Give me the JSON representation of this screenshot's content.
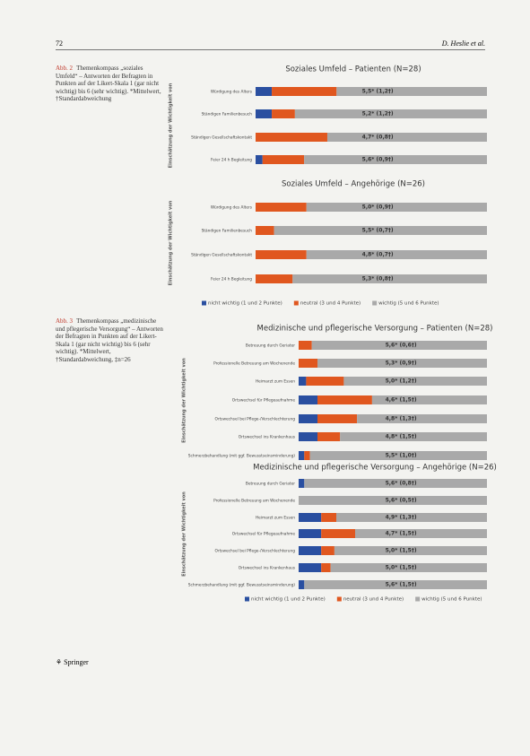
{
  "header": {
    "page": "72",
    "authors": "D. Heslie et al."
  },
  "captions": [
    {
      "label": "Abb. 2",
      "text": "Themenkompass „soziales Umfeld“ – Antworten der Befragten in Punkten auf der Likert-Skala 1 (gar nicht wichtig) bis 6 (sehr wichtig). *Mittelwert, †Standardabweichung"
    },
    {
      "label": "Abb. 3",
      "text": "Themenkompass „medizinische und pflegerische Versorgung“ – Antworten der Befragten in Punkten auf der Likert-Skala 1 (gar nicht wichtig) bis 6 (sehr wichtig). *Mittelwert, †Standardabweichung, ‡n=26"
    }
  ],
  "footer": {
    "publisher": "Springer"
  },
  "chart_data": [
    {
      "type": "stacked-hbar",
      "title": "Soziales Umfeld – Patienten (N=28)",
      "y_label": "Einschätzung der Wichtigkeit von",
      "categories": [
        "Würdigung des Alters",
        "Ständigen Familienbesuch",
        "Ständigen Gesellschaftskontakt",
        "Feier 24 h Begleitung"
      ],
      "annotations": [
        "5,5* (1,2†)",
        "5,2* (1,2†)",
        "4,7* (0,8†)",
        "5,6* (0,9†)"
      ],
      "series": [
        {
          "name": "nicht wichtig (1 und 2 Punkte)",
          "color": "#2a4fa0",
          "values": [
            7,
            7,
            0,
            3
          ]
        },
        {
          "name": "neutral (3 und 4 Punkte)",
          "color": "#e0571f",
          "values": [
            28,
            10,
            31,
            18
          ]
        },
        {
          "name": "wichtig (5 und 6 Punkte)",
          "color": "#a9a9a9",
          "values": [
            65,
            83,
            69,
            79
          ]
        }
      ],
      "xlim": [
        0,
        100
      ],
      "legend": false
    },
    {
      "type": "stacked-hbar",
      "title": "Soziales Umfeld – Angehörige (N=26)",
      "y_label": "Einschätzung der Wichtigkeit von",
      "categories": [
        "Würdigung des Alters",
        "Ständigen Familienbesuch",
        "Ständigen Gesellschaftskontakt",
        "Feier 24 h Begleitung"
      ],
      "annotations": [
        "5,0* (0,9†)",
        "5,5* (0,7†)",
        "4,8* (0,7†)",
        "5,3* (0,8†)"
      ],
      "series": [
        {
          "name": "nicht wichtig (1 und 2 Punkte)",
          "color": "#2a4fa0",
          "values": [
            0,
            0,
            0,
            0
          ]
        },
        {
          "name": "neutral (3 und 4 Punkte)",
          "color": "#e0571f",
          "values": [
            22,
            8,
            22,
            16
          ]
        },
        {
          "name": "wichtig (5 und 6 Punkte)",
          "color": "#a9a9a9",
          "values": [
            78,
            92,
            78,
            84
          ]
        }
      ],
      "xlim": [
        0,
        100
      ],
      "legend": true
    },
    {
      "type": "stacked-hbar",
      "title": "Medizinische und pflegerische Versorgung – Patienten (N=28)",
      "y_label": "Einschätzung der Wichtigkeit von",
      "categories": [
        "Betreuung durch Geriater",
        "Professionelle Betreuung am Wochenende",
        "Heimarzt zum Essen",
        "Ortswechsel für Pflegeaufnahme",
        "Ortswechsel bei Pflege-/Verschlechterung",
        "Ortswechsel ins Krankenhaus",
        "Schmerzbehandlung (mit ggf. Bewusstseinsminderung)"
      ],
      "annotations": [
        "5,6* (0,6†)",
        "5,3* (0,9†)",
        "5,0* (1,2†)",
        "4,6* (1,5†)",
        "4,8* (1,3†)",
        "4,8* (1,5†)",
        "5,5* (1,0†)"
      ],
      "series": [
        {
          "name": "nicht wichtig (1 und 2 Punkte)",
          "color": "#2a4fa0",
          "values": [
            0,
            0,
            4,
            10,
            10,
            10,
            3
          ]
        },
        {
          "name": "neutral (3 und 4 Punkte)",
          "color": "#e0571f",
          "values": [
            7,
            10,
            20,
            29,
            21,
            12,
            3
          ]
        },
        {
          "name": "wichtig (5 und 6 Punkte)",
          "color": "#a9a9a9",
          "values": [
            93,
            90,
            76,
            61,
            69,
            78,
            94
          ]
        }
      ],
      "xlim": [
        0,
        100
      ],
      "legend": false
    },
    {
      "type": "stacked-hbar",
      "title": "Medizinische und pflegerische Versorgung – Angehörige (N=26)",
      "y_label": "Einschätzung der Wichtigkeit von",
      "categories": [
        "Betreuung durch Geriater",
        "Professionelle Betreuung am Wochenende",
        "Heimarzt zum Essen",
        "Ortswechsel für Pflegeaufnahme",
        "Ortswechsel bei Pflege-/Verschlechterung",
        "Ortswechsel ins Krankenhaus",
        "Schmerzbehandlung (mit ggf. Bewusstseinsminderung)"
      ],
      "annotations": [
        "5,6* (0,8†)",
        "5,6* (0,5†)",
        "4,9* (1,3†)",
        "4,7* (1,5†)",
        "5,0* (1,5†)",
        "5,0* (1,5†)",
        "5,6* (1,5†)"
      ],
      "series": [
        {
          "name": "nicht wichtig (1 und 2 Punkte)",
          "color": "#2a4fa0",
          "values": [
            3,
            0,
            12,
            12,
            12,
            12,
            3
          ]
        },
        {
          "name": "neutral (3 und 4 Punkte)",
          "color": "#e0571f",
          "values": [
            0,
            0,
            8,
            18,
            7,
            5,
            0
          ]
        },
        {
          "name": "wichtig (5 und 6 Punkte)",
          "color": "#a9a9a9",
          "values": [
            97,
            100,
            80,
            70,
            81,
            83,
            97
          ]
        }
      ],
      "xlim": [
        0,
        100
      ],
      "legend": true
    }
  ]
}
